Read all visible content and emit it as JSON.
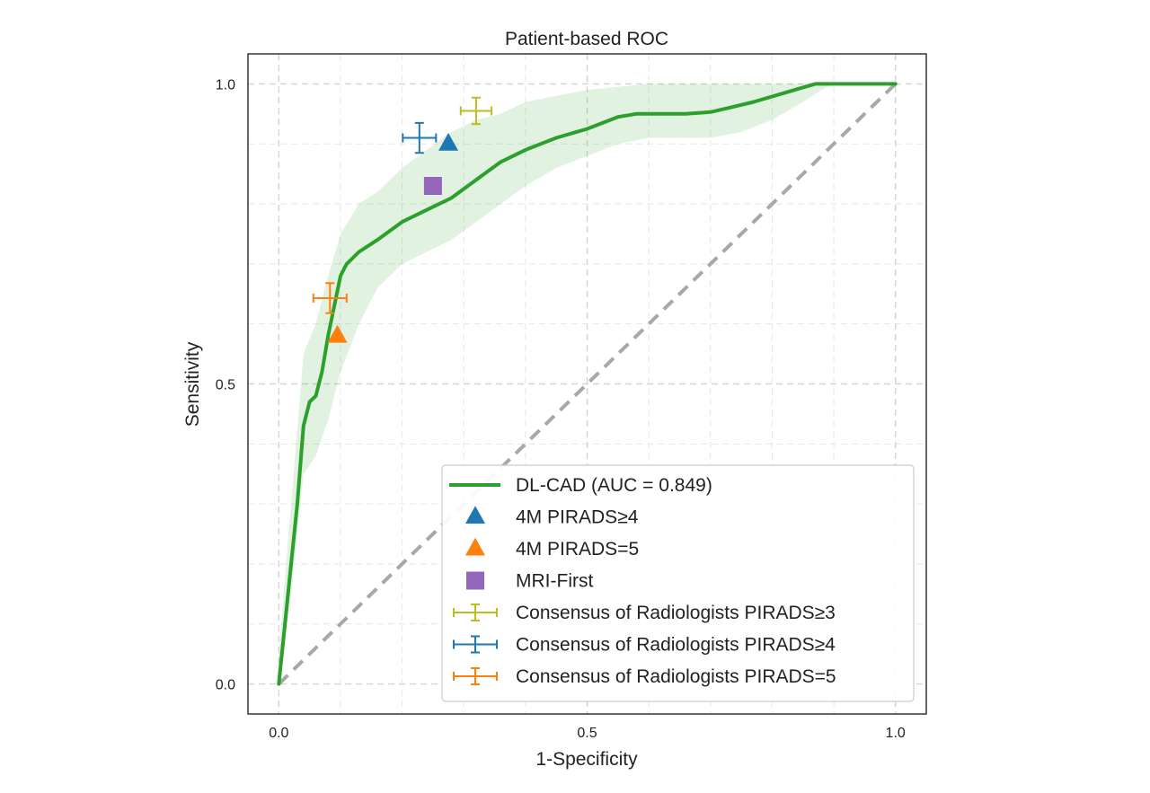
{
  "chart_data": {
    "type": "line",
    "title": "Patient-based ROC",
    "xlabel": "1-Specificity",
    "ylabel": "Sensitivity",
    "xlim": [
      -0.05,
      1.05
    ],
    "ylim": [
      -0.05,
      1.05
    ],
    "xticks": [
      0.0,
      0.5,
      1.0
    ],
    "yticks": [
      0.0,
      0.5,
      1.0
    ],
    "xtick_labels": [
      "0.0",
      "0.5",
      "1.0"
    ],
    "ytick_labels": [
      "0.0",
      "0.5",
      "1.0"
    ],
    "grid": true,
    "legend_position": "lower-right",
    "colors": {
      "roc": "#2ca02c",
      "ci_band": "#2ca02c",
      "chance": "#a8a8a8",
      "pirads4": "#1f77b4",
      "pirads5": "#ff7f0e",
      "mri_first": "#9467bd",
      "cons3": "#bcbd22",
      "cons4": "#1f77b4",
      "cons5": "#ff7f0e"
    },
    "roc_curve": {
      "name": "DL-CAD (AUC = 0.849)",
      "x": [
        0.0,
        0.01,
        0.02,
        0.03,
        0.04,
        0.05,
        0.06,
        0.07,
        0.08,
        0.09,
        0.1,
        0.11,
        0.13,
        0.16,
        0.2,
        0.24,
        0.28,
        0.32,
        0.36,
        0.4,
        0.45,
        0.5,
        0.55,
        0.58,
        0.62,
        0.66,
        0.7,
        0.73,
        0.77,
        0.82,
        0.87,
        0.91,
        0.95,
        1.0
      ],
      "y": [
        0.0,
        0.1,
        0.2,
        0.3,
        0.43,
        0.47,
        0.48,
        0.52,
        0.58,
        0.63,
        0.68,
        0.7,
        0.72,
        0.74,
        0.77,
        0.79,
        0.81,
        0.84,
        0.87,
        0.89,
        0.91,
        0.925,
        0.945,
        0.95,
        0.95,
        0.95,
        0.953,
        0.96,
        0.97,
        0.985,
        1.0,
        1.0,
        1.0,
        1.0
      ]
    },
    "ci_band": {
      "x": [
        0.0,
        0.02,
        0.04,
        0.06,
        0.08,
        0.1,
        0.13,
        0.16,
        0.2,
        0.24,
        0.28,
        0.32,
        0.36,
        0.4,
        0.45,
        0.5,
        0.55,
        0.6,
        0.65,
        0.7,
        0.75,
        0.8,
        0.85,
        0.88,
        0.9,
        0.95,
        1.0
      ],
      "lower": [
        0.0,
        0.15,
        0.35,
        0.38,
        0.44,
        0.52,
        0.6,
        0.66,
        0.7,
        0.72,
        0.74,
        0.77,
        0.8,
        0.83,
        0.86,
        0.88,
        0.9,
        0.91,
        0.91,
        0.91,
        0.92,
        0.94,
        0.97,
        0.99,
        1.0,
        1.0,
        1.0
      ],
      "upper": [
        0.05,
        0.3,
        0.55,
        0.6,
        0.68,
        0.75,
        0.8,
        0.82,
        0.86,
        0.89,
        0.92,
        0.94,
        0.95,
        0.97,
        0.98,
        0.99,
        0.995,
        1.0,
        1.0,
        1.0,
        1.0,
        1.0,
        1.0,
        1.0,
        1.0,
        1.0,
        1.0
      ]
    },
    "chance_line": {
      "x": [
        0.0,
        1.0
      ],
      "y": [
        0.0,
        1.0
      ]
    },
    "points": [
      {
        "name": "4M PIRADS≥4",
        "marker": "triangle",
        "color": "#1f77b4",
        "x": 0.275,
        "y": 0.9
      },
      {
        "name": "4M PIRADS=5",
        "marker": "triangle",
        "color": "#ff7f0e",
        "x": 0.095,
        "y": 0.58
      },
      {
        "name": "MRI-First",
        "marker": "square",
        "color": "#9467bd",
        "x": 0.25,
        "y": 0.83
      }
    ],
    "errorbars": [
      {
        "name": "Consensus of Radiologists PIRADS≥3",
        "color": "#bcbd22",
        "x": 0.32,
        "y": 0.955,
        "xerr": 0.025,
        "yerr": 0.022
      },
      {
        "name": "Consensus of Radiologists PIRADS≥4",
        "color": "#1f77b4",
        "x": 0.228,
        "y": 0.91,
        "xerr": 0.027,
        "yerr": 0.025
      },
      {
        "name": "Consensus of Radiologists PIRADS=5",
        "color": "#ff7f0e",
        "x": 0.083,
        "y": 0.643,
        "xerr": 0.027,
        "yerr": 0.025
      }
    ],
    "legend": [
      {
        "label": "DL-CAD (AUC = 0.849)",
        "type": "line",
        "color": "#2ca02c"
      },
      {
        "label": "4M PIRADS≥4",
        "type": "triangle",
        "color": "#1f77b4"
      },
      {
        "label": "4M PIRADS=5",
        "type": "triangle",
        "color": "#ff7f0e"
      },
      {
        "label": "MRI-First",
        "type": "square",
        "color": "#9467bd"
      },
      {
        "label": "Consensus of Radiologists PIRADS≥3",
        "type": "errorbar",
        "color": "#bcbd22"
      },
      {
        "label": "Consensus of Radiologists PIRADS≥4",
        "type": "errorbar",
        "color": "#1f77b4"
      },
      {
        "label": "Consensus of Radiologists PIRADS=5",
        "type": "errorbar",
        "color": "#ff7f0e"
      }
    ]
  }
}
